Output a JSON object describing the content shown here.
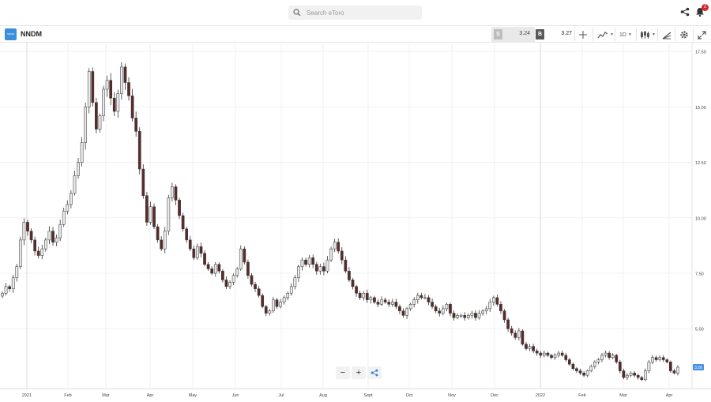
{
  "header": {
    "search_placeholder": "Search eToro",
    "notification_count": "2"
  },
  "toolbar": {
    "logo_text": "NNDM",
    "ticker": "NNDM",
    "sell_label": "S",
    "sell_price": "3.24",
    "buy_label": "B",
    "buy_price": "3.27",
    "timeframe": "1D"
  },
  "colors": {
    "up": "#e9e9e9",
    "down": "#5b2b2b",
    "wick": "#333333",
    "grid": "#f0f0f0",
    "price_tag": "#4a90e2"
  },
  "chart_data": {
    "type": "candlestick",
    "ticker": "NNDM",
    "y_ticks": [
      "17.50",
      "15.00",
      "12.50",
      "10.00",
      "7.50",
      "5.00"
    ],
    "ylim": [
      2.3,
      17.9
    ],
    "x_ticks": [
      "2021",
      "Feb",
      "Mar",
      "Apr",
      "May",
      "Jun",
      "Jul",
      "Aug",
      "Sept",
      "Oct",
      "Nov",
      "Dec",
      "2022",
      "Feb",
      "Mar",
      "Apr"
    ],
    "last_price": "3.26",
    "close_series": [
      6.6,
      6.9,
      6.8,
      7.3,
      7.8,
      9.0,
      9.8,
      9.4,
      9.0,
      8.5,
      8.3,
      8.6,
      9.0,
      9.4,
      8.9,
      9.1,
      9.7,
      10.3,
      10.6,
      11.1,
      11.9,
      12.5,
      13.4,
      15.0,
      16.6,
      15.2,
      14.0,
      14.6,
      15.8,
      16.2,
      15.4,
      14.8,
      15.6,
      16.8,
      16.1,
      15.5,
      14.5,
      13.9,
      12.2,
      11.0,
      9.8,
      10.5,
      9.6,
      9.0,
      8.6,
      9.4,
      10.9,
      11.4,
      10.8,
      10.1,
      9.5,
      9.0,
      8.6,
      8.2,
      8.7,
      8.4,
      7.9,
      7.7,
      7.5,
      7.9,
      7.6,
      7.2,
      6.9,
      7.1,
      7.4,
      7.7,
      8.6,
      8.0,
      7.4,
      7.0,
      6.8,
      6.5,
      6.0,
      5.7,
      5.8,
      6.3,
      6.0,
      6.2,
      6.4,
      6.6,
      6.9,
      7.3,
      7.8,
      8.1,
      7.9,
      8.2,
      7.9,
      7.6,
      7.8,
      7.6,
      8.1,
      8.6,
      8.9,
      8.5,
      8.1,
      7.6,
      7.2,
      6.9,
      6.6,
      6.4,
      6.6,
      6.3,
      6.4,
      6.2,
      6.1,
      6.3,
      6.2,
      6.1,
      6.2,
      6.0,
      5.8,
      5.6,
      5.9,
      6.1,
      6.3,
      6.5,
      6.4,
      6.4,
      6.2,
      6.0,
      5.8,
      5.7,
      5.9,
      6.1,
      5.7,
      5.5,
      5.6,
      5.6,
      5.5,
      5.6,
      5.7,
      5.5,
      5.7,
      5.8,
      5.9,
      6.2,
      6.4,
      6.1,
      5.8,
      5.4,
      5.0,
      4.8,
      4.6,
      4.9,
      4.3,
      4.1,
      4.2,
      4.0,
      3.9,
      3.8,
      3.9,
      3.8,
      3.7,
      3.8,
      3.9,
      3.8,
      3.6,
      3.4,
      3.2,
      3.1,
      3.0,
      2.9,
      3.1,
      3.3,
      3.5,
      3.6,
      3.8,
      3.9,
      3.7,
      3.8,
      3.5,
      3.1,
      2.8,
      2.9,
      3.0,
      2.9,
      2.8,
      2.7,
      3.1,
      3.5,
      3.7,
      3.6,
      3.7,
      3.6,
      3.5,
      3.1,
      3.0,
      3.26
    ]
  }
}
